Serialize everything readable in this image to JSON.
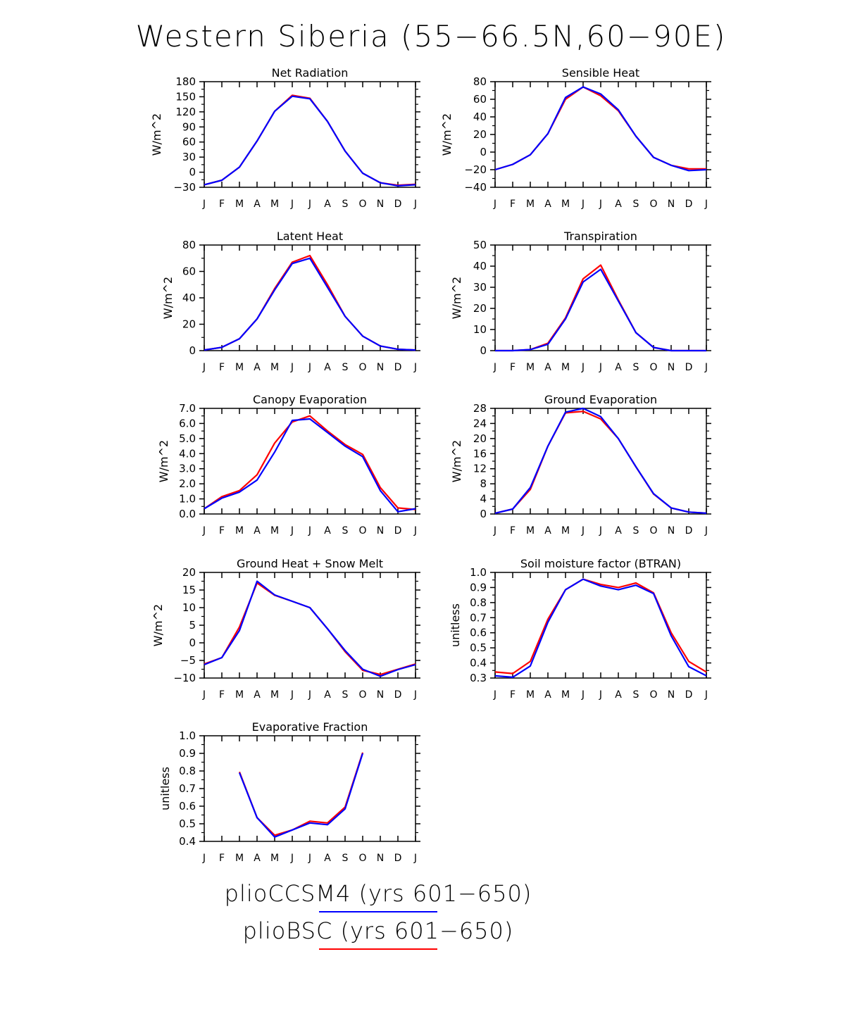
{
  "title": "Western Siberia (55−66.5N,60−90E)",
  "months": [
    "J",
    "F",
    "M",
    "A",
    "M",
    "J",
    "J",
    "A",
    "S",
    "O",
    "N",
    "D",
    "J"
  ],
  "series_colors": {
    "pliobsc": "#ff0000",
    "plioccsm4": "#0000ff"
  },
  "legend": [
    {
      "label": "plioCCSM4 (yrs 601−650)",
      "color": "#0000ff"
    },
    {
      "label": "plioBSC (yrs 601−650)",
      "color": "#ff0000"
    }
  ],
  "chart_data": [
    {
      "type": "line",
      "title": "Net Radiation",
      "ylabel": "W/m^2",
      "ylim": [
        -30,
        180
      ],
      "yticks": [
        -30,
        0,
        30,
        60,
        90,
        120,
        150,
        180
      ],
      "ytick_labels": [
        "−30",
        "0",
        "30",
        "60",
        "90",
        "120",
        "150",
        "180"
      ],
      "x": [
        "J",
        "F",
        "M",
        "A",
        "M",
        "J",
        "J",
        "A",
        "S",
        "O",
        "N",
        "D",
        "J"
      ],
      "series": [
        {
          "color": "#ff0000",
          "values": [
            -25,
            -16,
            10,
            62,
            121,
            153,
            147,
            101,
            42,
            -2,
            -21,
            -26,
            -24
          ]
        },
        {
          "color": "#0000ff",
          "values": [
            -25,
            -16,
            10,
            62,
            121,
            151,
            146,
            101,
            42,
            -2,
            -21,
            -27,
            -25
          ]
        }
      ]
    },
    {
      "type": "line",
      "title": "Sensible Heat",
      "ylabel": "W/m^2",
      "ylim": [
        -40,
        80
      ],
      "yticks": [
        -40,
        -20,
        0,
        20,
        40,
        60,
        80
      ],
      "ytick_labels": [
        "−40",
        "−20",
        "0",
        "20",
        "40",
        "60",
        "80"
      ],
      "x": [
        "J",
        "F",
        "M",
        "A",
        "M",
        "J",
        "J",
        "A",
        "S",
        "O",
        "N",
        "D",
        "J"
      ],
      "series": [
        {
          "color": "#ff0000",
          "values": [
            -20,
            -14,
            -3,
            21,
            60,
            74,
            64,
            47,
            18,
            -6,
            -15,
            -19,
            -19
          ]
        },
        {
          "color": "#0000ff",
          "values": [
            -20,
            -14,
            -3,
            21,
            62,
            74,
            66,
            48,
            18,
            -6,
            -15,
            -21,
            -20
          ]
        }
      ]
    },
    {
      "type": "line",
      "title": "Latent Heat",
      "ylabel": "W/m^2",
      "ylim": [
        0,
        80
      ],
      "yticks": [
        0,
        20,
        40,
        60,
        80
      ],
      "ytick_labels": [
        "0",
        "20",
        "40",
        "60",
        "80"
      ],
      "x": [
        "J",
        "F",
        "M",
        "A",
        "M",
        "J",
        "J",
        "A",
        "S",
        "O",
        "N",
        "D",
        "J"
      ],
      "series": [
        {
          "color": "#ff0000",
          "values": [
            0.5,
            2.5,
            9,
            24,
            47,
            67,
            72,
            50,
            26,
            11,
            3.5,
            1,
            0.5
          ]
        },
        {
          "color": "#0000ff",
          "values": [
            0.5,
            2.5,
            9,
            24,
            46,
            66,
            70,
            48,
            26,
            11,
            3.5,
            1,
            0.5
          ]
        }
      ]
    },
    {
      "type": "line",
      "title": "Transpiration",
      "ylabel": "W/m^2",
      "ylim": [
        0,
        50
      ],
      "yticks": [
        0,
        10,
        20,
        30,
        40,
        50
      ],
      "ytick_labels": [
        "0",
        "10",
        "20",
        "30",
        "40",
        "50"
      ],
      "x": [
        "J",
        "F",
        "M",
        "A",
        "M",
        "J",
        "J",
        "A",
        "S",
        "O",
        "N",
        "D",
        "J"
      ],
      "series": [
        {
          "color": "#ff0000",
          "values": [
            0,
            0,
            0.5,
            3.5,
            15.5,
            34,
            40.5,
            24,
            8.5,
            1.5,
            0,
            0,
            0
          ]
        },
        {
          "color": "#0000ff",
          "values": [
            0,
            0,
            0.5,
            3,
            15,
            32.5,
            38.5,
            23.5,
            8.5,
            1.5,
            0,
            0,
            0
          ]
        }
      ]
    },
    {
      "type": "line",
      "title": "Canopy Evaporation",
      "ylabel": "W/m^2",
      "ylim": [
        0,
        7
      ],
      "yticks": [
        0,
        1,
        2,
        3,
        4,
        5,
        6,
        7
      ],
      "ytick_labels": [
        "0.0",
        "1.0",
        "2.0",
        "3.0",
        "4.0",
        "5.0",
        "6.0",
        "7.0"
      ],
      "x": [
        "J",
        "F",
        "M",
        "A",
        "M",
        "J",
        "J",
        "A",
        "S",
        "O",
        "N",
        "D",
        "J"
      ],
      "series": [
        {
          "color": "#ff0000",
          "values": [
            0.35,
            1.15,
            1.55,
            2.6,
            4.7,
            6.1,
            6.5,
            5.5,
            4.6,
            3.95,
            1.75,
            0.4,
            0.3
          ]
        },
        {
          "color": "#0000ff",
          "values": [
            0.35,
            1.05,
            1.45,
            2.25,
            4.1,
            6.2,
            6.3,
            5.4,
            4.5,
            3.8,
            1.55,
            0.15,
            0.35
          ]
        }
      ]
    },
    {
      "type": "line",
      "title": "Ground Evaporation",
      "ylabel": "W/m^2",
      "ylim": [
        0,
        28
      ],
      "yticks": [
        0,
        4,
        8,
        12,
        16,
        20,
        24,
        28
      ],
      "ytick_labels": [
        "0",
        "4",
        "8",
        "12",
        "16",
        "20",
        "24",
        "28"
      ],
      "x": [
        "J",
        "F",
        "M",
        "A",
        "M",
        "J",
        "J",
        "A",
        "S",
        "O",
        "N",
        "D",
        "J"
      ],
      "series": [
        {
          "color": "#ff0000",
          "values": [
            0.2,
            1.3,
            6.5,
            18,
            26.8,
            27.2,
            25.2,
            20,
            12.5,
            5.3,
            1.6,
            0.5,
            0.2
          ]
        },
        {
          "color": "#0000ff",
          "values": [
            0.2,
            1.3,
            7,
            18,
            27,
            28,
            25.8,
            20,
            12.5,
            5.4,
            1.6,
            0.5,
            0.2
          ]
        }
      ]
    },
    {
      "type": "line",
      "title": "Ground Heat + Snow Melt",
      "ylabel": "W/m^2",
      "ylim": [
        -10,
        20
      ],
      "yticks": [
        -10,
        -5,
        0,
        5,
        10,
        15,
        20
      ],
      "ytick_labels": [
        "−10",
        "−5",
        "0",
        "5",
        "10",
        "15",
        "20"
      ],
      "x": [
        "J",
        "F",
        "M",
        "A",
        "M",
        "J",
        "J",
        "A",
        "S",
        "O",
        "N",
        "D",
        "J"
      ],
      "series": [
        {
          "color": "#ff0000",
          "values": [
            -6,
            -4.2,
            4.5,
            17,
            13.5,
            11.8,
            10,
            4,
            -2.5,
            -7.8,
            -9,
            -7.5,
            -6
          ]
        },
        {
          "color": "#0000ff",
          "values": [
            -6.2,
            -4.2,
            3.5,
            17.5,
            13.6,
            11.8,
            10,
            4,
            -2.2,
            -7.5,
            -9.5,
            -7.6,
            -6.2
          ]
        }
      ]
    },
    {
      "type": "line",
      "title": "Soil moisture factor (BTRAN)",
      "ylabel": "unitless",
      "ylim": [
        0.3,
        1.0
      ],
      "yticks": [
        0.3,
        0.4,
        0.5,
        0.6,
        0.7,
        0.8,
        0.9,
        1.0
      ],
      "ytick_labels": [
        "0.3",
        "0.4",
        "0.5",
        "0.6",
        "0.7",
        "0.8",
        "0.9",
        "1.0"
      ],
      "x": [
        "J",
        "F",
        "M",
        "A",
        "M",
        "J",
        "J",
        "A",
        "S",
        "O",
        "N",
        "D",
        "J"
      ],
      "series": [
        {
          "color": "#ff0000",
          "values": [
            0.34,
            0.33,
            0.41,
            0.69,
            0.885,
            0.955,
            0.92,
            0.9,
            0.93,
            0.865,
            0.6,
            0.41,
            0.34
          ]
        },
        {
          "color": "#0000ff",
          "values": [
            0.315,
            0.305,
            0.38,
            0.67,
            0.885,
            0.955,
            0.91,
            0.885,
            0.915,
            0.86,
            0.58,
            0.375,
            0.315
          ]
        }
      ]
    },
    {
      "type": "line",
      "title": "Evaporative Fraction",
      "ylabel": "unitless",
      "ylim": [
        0.4,
        1.0
      ],
      "yticks": [
        0.4,
        0.5,
        0.6,
        0.7,
        0.8,
        0.9,
        1.0
      ],
      "ytick_labels": [
        "0.4",
        "0.5",
        "0.6",
        "0.7",
        "0.8",
        "0.9",
        "1.0"
      ],
      "x": [
        "J",
        "F",
        "M",
        "A",
        "M",
        "J",
        "J",
        "A",
        "S",
        "O",
        "N",
        "D",
        "J"
      ],
      "series": [
        {
          "color": "#ff0000",
          "values": [
            null,
            null,
            0.795,
            0.535,
            0.435,
            0.465,
            0.515,
            0.505,
            0.595,
            0.905,
            null,
            null,
            null
          ]
        },
        {
          "color": "#0000ff",
          "values": [
            null,
            null,
            0.79,
            0.535,
            0.425,
            0.465,
            0.505,
            0.495,
            0.585,
            0.9,
            null,
            null,
            null
          ]
        }
      ]
    }
  ]
}
